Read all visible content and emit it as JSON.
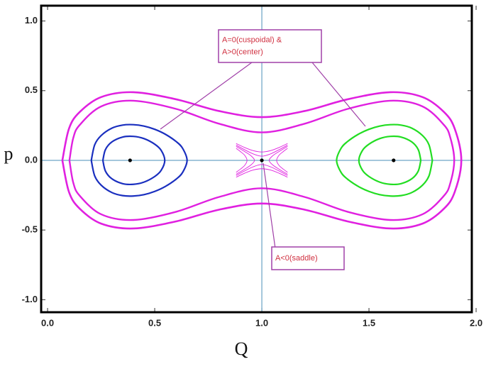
{
  "chart_data": {
    "type": "line",
    "xlabel": "Q",
    "ylabel": "p",
    "xlim": [
      -0.03,
      1.98
    ],
    "ylim": [
      -1.09,
      1.11
    ],
    "xticks": [
      {
        "value": 0,
        "label": "0.0"
      },
      {
        "value": 0.5,
        "label": "0.5"
      },
      {
        "value": 1,
        "label": "1.0"
      },
      {
        "value": 1.5,
        "label": "1.5"
      },
      {
        "value": 2,
        "label": "2.0"
      }
    ],
    "yticks": [
      {
        "value": -1,
        "label": "-1.0"
      },
      {
        "value": -0.5,
        "label": "-0.5"
      },
      {
        "value": 0,
        "label": "0.0"
      },
      {
        "value": 0.5,
        "label": "0.5"
      },
      {
        "value": 1,
        "label": "1.0"
      }
    ],
    "axes_origin": {
      "x": 1,
      "y": 0
    },
    "axes_origin_color": "#4a8fb8",
    "series": [
      {
        "color": "#e020e0",
        "line_width": 2.6,
        "x": [
          0.069,
          0.1,
          0.15,
          0.25,
          0.4,
          0.6,
          0.8,
          1,
          1.2,
          1.4,
          1.6,
          1.75,
          1.85,
          1.9,
          1.931,
          1.9,
          1.85,
          1.75,
          1.6,
          1.4,
          1.2,
          1,
          0.8,
          0.6,
          0.4,
          0.25,
          0.15,
          0.1,
          0.069
        ],
        "y": [
          0,
          0.228,
          0.347,
          0.454,
          0.489,
          0.438,
          0.354,
          0.31,
          0.354,
          0.438,
          0.489,
          0.454,
          0.347,
          0.228,
          0,
          -0.228,
          -0.347,
          -0.454,
          -0.489,
          -0.438,
          -0.354,
          -0.31,
          -0.354,
          -0.438,
          -0.489,
          -0.454,
          -0.347,
          -0.228,
          0
        ]
      },
      {
        "color": "#e020e0",
        "line_width": 2.4,
        "x": [
          0.102,
          0.12,
          0.15,
          0.25,
          0.4,
          0.6,
          0.8,
          1,
          1.2,
          1.4,
          1.6,
          1.75,
          1.85,
          1.88,
          1.898,
          1.88,
          1.85,
          1.75,
          1.6,
          1.4,
          1.2,
          1,
          0.8,
          0.6,
          0.4,
          0.25,
          0.15,
          0.12,
          0.102
        ],
        "y": [
          0,
          0.161,
          0.254,
          0.387,
          0.428,
          0.369,
          0.263,
          0.2005,
          0.263,
          0.369,
          0.428,
          0.387,
          0.254,
          0.161,
          0,
          -0.161,
          -0.254,
          -0.387,
          -0.428,
          -0.369,
          -0.263,
          -0.2005,
          -0.263,
          -0.369,
          -0.428,
          -0.387,
          -0.254,
          -0.161,
          0
        ]
      },
      {
        "color": "#1a2fbf",
        "line_width": 2.2,
        "x": [
          0.204,
          0.22,
          0.25,
          0.3,
          0.35,
          0.4,
          0.45,
          0.5,
          0.55,
          0.6,
          0.63,
          0.651,
          0.63,
          0.6,
          0.55,
          0.5,
          0.45,
          0.4,
          0.35,
          0.3,
          0.25,
          0.22,
          0.204
        ],
        "y": [
          0,
          0.112,
          0.178,
          0.231,
          0.253,
          0.256,
          0.246,
          0.223,
          0.187,
          0.135,
          0.087,
          0,
          -0.087,
          -0.135,
          -0.187,
          -0.223,
          -0.246,
          -0.256,
          -0.253,
          -0.231,
          -0.178,
          -0.112,
          0
        ]
      },
      {
        "color": "#1a2fbf",
        "line_width": 2.2,
        "x": [
          0.258,
          0.27,
          0.3,
          0.35,
          0.4,
          0.45,
          0.5,
          0.53,
          0.547,
          0.53,
          0.5,
          0.45,
          0.4,
          0.35,
          0.3,
          0.27,
          0.258
        ],
        "y": [
          0,
          0.077,
          0.132,
          0.167,
          0.172,
          0.156,
          0.116,
          0.072,
          0,
          -0.072,
          -0.116,
          -0.156,
          -0.172,
          -0.167,
          -0.132,
          -0.077,
          0
        ]
      },
      {
        "color": "#22dd22",
        "line_width": 2.2,
        "x": [
          1.796,
          1.78,
          1.75,
          1.7,
          1.65,
          1.6,
          1.55,
          1.5,
          1.45,
          1.4,
          1.37,
          1.349,
          1.37,
          1.4,
          1.45,
          1.5,
          1.55,
          1.6,
          1.65,
          1.7,
          1.75,
          1.78,
          1.796
        ],
        "y": [
          0,
          0.112,
          0.178,
          0.231,
          0.253,
          0.256,
          0.246,
          0.223,
          0.187,
          0.135,
          0.087,
          0,
          -0.087,
          -0.135,
          -0.187,
          -0.223,
          -0.246,
          -0.256,
          -0.253,
          -0.231,
          -0.178,
          -0.112,
          0
        ]
      },
      {
        "color": "#22dd22",
        "line_width": 2.2,
        "x": [
          1.742,
          1.73,
          1.7,
          1.65,
          1.6,
          1.55,
          1.5,
          1.47,
          1.453,
          1.47,
          1.5,
          1.55,
          1.6,
          1.65,
          1.7,
          1.73,
          1.742
        ],
        "y": [
          0,
          0.077,
          0.132,
          0.167,
          0.172,
          0.156,
          0.116,
          0.072,
          0,
          -0.072,
          -0.116,
          -0.156,
          -0.172,
          -0.167,
          -0.132,
          -0.077,
          0
        ]
      },
      {
        "color": "#e020e0",
        "line_width": 0.9,
        "x": [
          0.88,
          0.92,
          0.96,
          1,
          1.04,
          1.08,
          1.12,
          null,
          0.88,
          0.92,
          0.96,
          1,
          1.04,
          1.08,
          1.12
        ],
        "y": [
          0.109,
          0.076,
          0.046,
          0.03,
          0.046,
          0.076,
          0.109,
          null,
          -0.109,
          -0.076,
          -0.046,
          -0.03,
          -0.046,
          -0.076,
          -0.109
        ]
      },
      {
        "color": "#e020e0",
        "line_width": 0.9,
        "x": [
          0.88,
          0.92,
          0.96,
          1,
          1.04,
          1.08,
          1.12,
          null,
          0.88,
          0.92,
          0.96,
          1,
          1.04,
          1.08,
          1.12
        ],
        "y": [
          0.1206,
          0.092,
          0.0694,
          0.06,
          0.0694,
          0.092,
          0.1206,
          null,
          -0.1206,
          -0.092,
          -0.0694,
          -0.06,
          -0.0694,
          -0.092,
          -0.1206
        ]
      },
      {
        "color": "#e020e0",
        "line_width": 0.9,
        "x": [
          0.88,
          0.92,
          0.95,
          0.966,
          0.95,
          0.92,
          0.88,
          null,
          1.12,
          1.08,
          1.05,
          1.034,
          1.05,
          1.08,
          1.12
        ],
        "y": [
          0.1,
          0.063,
          0.032,
          0,
          -0.032,
          -0.063,
          -0.1,
          null,
          0.1,
          0.063,
          0.032,
          0,
          -0.032,
          -0.063,
          -0.1
        ]
      },
      {
        "color": "#e020e0",
        "line_width": 0.9,
        "x": [
          0.88,
          0.9,
          0.92,
          0.931,
          0.92,
          0.9,
          0.88,
          null,
          1.12,
          1.1,
          1.08,
          1.069,
          1.08,
          1.1,
          1.12
        ],
        "y": [
          0.086,
          0.063,
          0.036,
          0,
          -0.036,
          -0.063,
          -0.086,
          null,
          0.086,
          0.063,
          0.036,
          0,
          -0.036,
          -0.063,
          -0.086
        ]
      }
    ],
    "points": {
      "color": "#000000",
      "x": [
        0.385,
        1,
        1.615
      ],
      "y": [
        0,
        0,
        0
      ]
    },
    "annotations": [
      {
        "lines": [
          "A=0(cuspoidal) &",
          "A>0(center)"
        ]
      },
      {
        "lines": [
          "A<0(saddle)"
        ]
      }
    ],
    "annotation_text_color": "#d03040",
    "annotation_border_color": "#a040a8"
  }
}
